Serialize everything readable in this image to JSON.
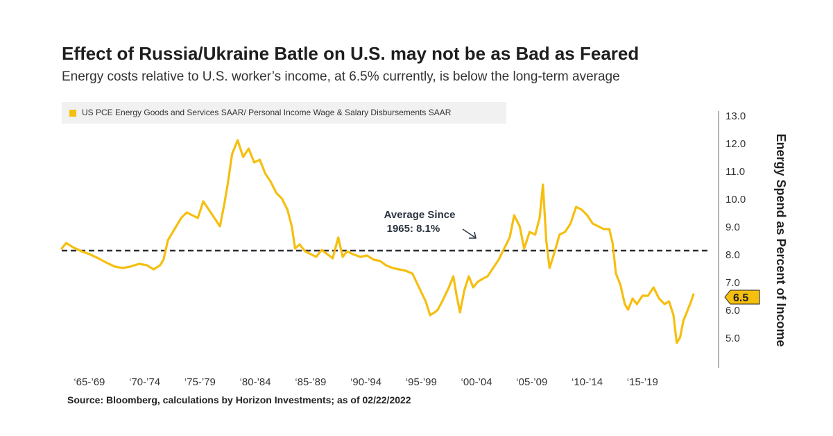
{
  "title": "Effect of Russia/Ukraine Batle on U.S. may not be as Bad as Feared",
  "subtitle": "Energy costs relative to U.S. worker’s income, at 6.5% currently, is below the long-term average",
  "source": "Source: Bloomberg, calculations by Horizon Investments; as of 02/22/2022",
  "colors": {
    "series": "#f5bf10",
    "average_line": "#2b2f33",
    "axis": "#999999"
  },
  "chart_data": {
    "type": "line",
    "title": "Effect of Russia/Ukraine Batle on U.S. may not be as Bad as Feared",
    "subtitle": "Energy costs relative to U.S. worker’s income, at 6.5% currently, is below the long-term average",
    "ylabel": "Energy Spend as Percent of Income",
    "y_axis_position": "right",
    "ylim": [
      4.0,
      13.2
    ],
    "xlim": [
      1965.0,
      2023.5
    ],
    "yticks": [
      "13.0",
      "12.0",
      "11.0",
      "10.0",
      "9.0",
      "8.0",
      "7.0",
      "6.0",
      "5.0"
    ],
    "ytick_values": [
      13,
      12,
      11,
      10,
      9,
      8,
      7,
      6,
      5
    ],
    "x_tick_labels": [
      "‘65-’69",
      "‘70-’74",
      "‘75-’79",
      "‘80-’84",
      "‘85-’89",
      "‘90-’94",
      "‘95-’99",
      "‘00-’04",
      "‘05-’09",
      "‘10-’14",
      "‘15-’19"
    ],
    "x_tick_positions": [
      1967.5,
      1972.5,
      1977.5,
      1982.5,
      1987.5,
      1992.5,
      1997.5,
      2002.5,
      2007.5,
      2012.5,
      2017.5
    ],
    "legend_position": "top-left",
    "grid": false,
    "series": [
      {
        "name": "US PCE Energy Goods and Services SAAR/ Personal Income Wage & Salary Disbursements SAAR",
        "x": [
          1965.0,
          1965.4,
          1966.0,
          1966.8,
          1967.5,
          1968.3,
          1969.0,
          1969.8,
          1970.5,
          1971.2,
          1972.0,
          1972.7,
          1973.3,
          1973.9,
          1974.2,
          1974.6,
          1975.2,
          1975.8,
          1976.3,
          1976.8,
          1977.3,
          1977.8,
          1978.3,
          1978.8,
          1979.3,
          1979.7,
          1980.0,
          1980.4,
          1980.9,
          1981.4,
          1981.9,
          1982.4,
          1982.9,
          1983.4,
          1983.9,
          1984.4,
          1984.9,
          1985.4,
          1985.8,
          1986.1,
          1986.5,
          1987.0,
          1987.5,
          1988.0,
          1988.5,
          1989.0,
          1989.5,
          1990.0,
          1990.4,
          1990.8,
          1991.3,
          1992.0,
          1992.6,
          1993.2,
          1993.8,
          1994.3,
          1994.9,
          1995.5,
          1996.1,
          1996.7,
          1997.3,
          1997.9,
          1998.3,
          1998.7,
          1999.0,
          1999.4,
          2000.0,
          2000.4,
          2000.7,
          2001.0,
          2001.4,
          2001.8,
          2002.2,
          2002.6,
          2003.0,
          2003.5,
          2004.0,
          2004.5,
          2005.0,
          2005.5,
          2005.9,
          2006.4,
          2006.8,
          2007.3,
          2007.8,
          2008.2,
          2008.5,
          2008.8,
          2009.1,
          2009.5,
          2010.0,
          2010.5,
          2011.0,
          2011.5,
          2012.0,
          2012.5,
          2013.0,
          2013.5,
          2014.0,
          2014.5,
          2014.8,
          2015.1,
          2015.5,
          2015.9,
          2016.2,
          2016.6,
          2017.0,
          2017.5,
          2018.0,
          2018.5,
          2019.0,
          2019.5,
          2019.9,
          2020.3,
          2020.6,
          2020.9,
          2021.2,
          2021.6,
          2021.9,
          2022.1
        ],
        "values": [
          8.2,
          8.4,
          8.25,
          8.1,
          8.0,
          7.85,
          7.7,
          7.55,
          7.5,
          7.55,
          7.65,
          7.6,
          7.45,
          7.6,
          7.8,
          8.5,
          8.9,
          9.3,
          9.5,
          9.4,
          9.3,
          9.9,
          9.6,
          9.3,
          9.0,
          9.8,
          10.5,
          11.6,
          12.1,
          11.5,
          11.8,
          11.3,
          11.4,
          10.9,
          10.6,
          10.2,
          10.0,
          9.6,
          9.0,
          8.2,
          8.35,
          8.1,
          8.0,
          7.9,
          8.15,
          8.0,
          7.85,
          8.6,
          7.9,
          8.1,
          8.0,
          7.9,
          7.95,
          7.8,
          7.75,
          7.6,
          7.5,
          7.45,
          7.4,
          7.3,
          6.8,
          6.3,
          5.8,
          5.9,
          6.0,
          6.3,
          6.8,
          7.2,
          6.5,
          5.9,
          6.7,
          7.2,
          6.8,
          7.0,
          7.1,
          7.2,
          7.5,
          7.8,
          8.2,
          8.6,
          9.4,
          9.0,
          8.2,
          8.8,
          8.7,
          9.3,
          10.5,
          8.5,
          7.5,
          8.0,
          8.7,
          8.8,
          9.1,
          9.7,
          9.6,
          9.4,
          9.1,
          9.0,
          8.9,
          8.9,
          8.4,
          7.3,
          6.9,
          6.2,
          6.0,
          6.4,
          6.2,
          6.5,
          6.5,
          6.8,
          6.4,
          6.2,
          6.3,
          5.8,
          4.8,
          5.0,
          5.6,
          6.0,
          6.3,
          6.55
        ]
      }
    ],
    "average": {
      "value": 8.1,
      "label_line1": "Average Since",
      "label_line2": "1965: 8.1%"
    },
    "current_value": {
      "value": 6.5,
      "label": "6.5"
    }
  }
}
